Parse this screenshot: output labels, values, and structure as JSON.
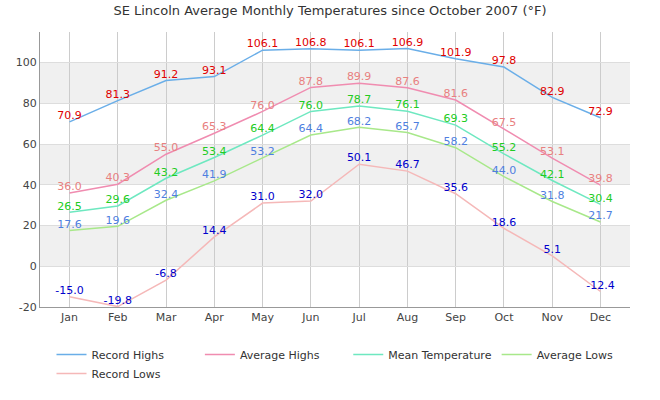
{
  "chart_data": {
    "type": "line",
    "title": "SE Lincoln Average Monthly Temperatures since October 2007 (°F)",
    "categories": [
      "Jan",
      "Feb",
      "Mar",
      "Apr",
      "May",
      "Jun",
      "Jul",
      "Aug",
      "Sep",
      "Oct",
      "Nov",
      "Dec"
    ],
    "series": [
      {
        "name": "Record Highs",
        "color": "#6aaee8",
        "values": [
          70.9,
          81.3,
          91.2,
          93.1,
          106.1,
          106.8,
          106.1,
          106.9,
          101.9,
          97.8,
          82.9,
          72.9
        ],
        "value_labels": [
          "70.9",
          "81.3",
          "91.2",
          "93.1",
          "106.1",
          "106.8",
          "106.1",
          "106.9",
          "101.9",
          "97.8",
          "82.9",
          "72.9"
        ]
      },
      {
        "name": "Average Highs",
        "color": "#f08cb0",
        "values": [
          36.0,
          40.3,
          55.0,
          65.3,
          76.0,
          87.8,
          89.9,
          87.6,
          81.6,
          67.5,
          53.1,
          39.8
        ],
        "value_labels": [
          "36.0",
          "40.3",
          "55.0",
          "65.3",
          "76.0",
          "87.8",
          "89.9",
          "87.6",
          "81.6",
          "67.5",
          "53.1",
          "39.8"
        ]
      },
      {
        "name": "Mean Temperature",
        "color": "#6ee8c0",
        "values": [
          26.5,
          29.6,
          43.2,
          53.4,
          64.4,
          76.0,
          78.7,
          76.1,
          69.3,
          55.2,
          42.1,
          30.4
        ],
        "value_labels": [
          "26.5",
          "29.6",
          "43.2",
          "53.4",
          "64.4",
          "76.0",
          "78.7",
          "76.1",
          "69.3",
          "55.2",
          "42.1",
          "30.4"
        ]
      },
      {
        "name": "Average Lows",
        "color": "#a8e88a",
        "values": [
          17.6,
          19.6,
          32.4,
          41.9,
          53.2,
          64.4,
          68.2,
          65.7,
          58.2,
          44.0,
          31.8,
          21.7
        ],
        "value_labels": [
          "17.6",
          "19.6",
          "32.4",
          "41.9",
          "53.2",
          "64.4",
          "68.2",
          "65.7",
          "58.2",
          "44.0",
          "31.8",
          "21.7"
        ]
      },
      {
        "name": "Record Lows",
        "color": "#f5b8b8",
        "values": [
          -15.0,
          -19.8,
          -6.8,
          14.4,
          31.0,
          32.0,
          50.1,
          46.7,
          35.6,
          18.6,
          5.1,
          -12.4
        ],
        "value_labels": [
          "-15.0",
          "-19.8",
          "-6.8",
          "14.4",
          "31.0",
          "32.0",
          "50.1",
          "46.7",
          "35.6",
          "18.6",
          "5.1",
          "-12.4"
        ]
      }
    ],
    "ylim": [
      -20,
      115
    ],
    "yticks": [
      -20,
      0,
      20,
      40,
      60,
      80,
      100
    ],
    "grid": true,
    "legend": "bottom",
    "data_labels": true
  }
}
